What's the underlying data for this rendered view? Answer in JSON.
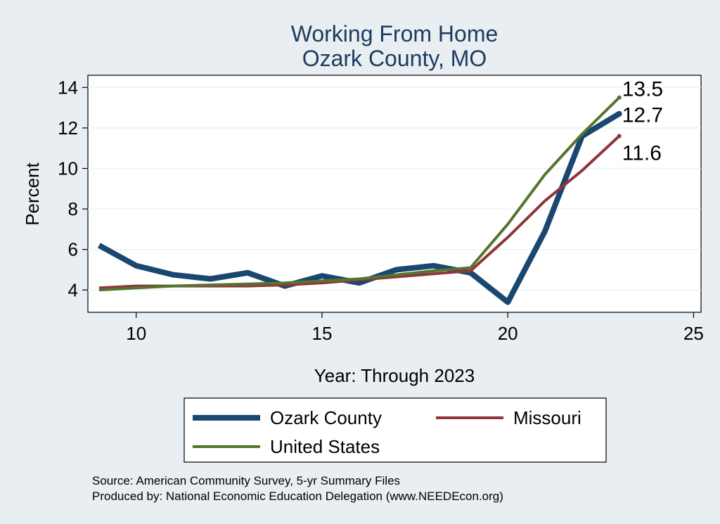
{
  "chart_data": {
    "type": "line",
    "title": "Working From Home",
    "subtitle": "Ozark County, MO",
    "xlabel": "Year: Through 2023",
    "ylabel": "Percent",
    "xlim": [
      8.7,
      25.2
    ],
    "ylim": [
      2.9,
      14.6
    ],
    "xticks": [
      10,
      15,
      20,
      25
    ],
    "yticks": [
      4,
      6,
      8,
      10,
      12,
      14
    ],
    "grid": true,
    "legend_position": "bottom",
    "x": [
      9,
      10,
      11,
      12,
      13,
      14,
      15,
      16,
      17,
      18,
      19,
      20,
      21,
      22,
      23
    ],
    "series": [
      {
        "name": "Ozark County",
        "color": "#1a476f",
        "values": [
          6.2,
          5.2,
          4.75,
          4.55,
          4.85,
          4.2,
          4.7,
          4.35,
          5.0,
          5.2,
          4.85,
          3.4,
          6.9,
          11.6,
          12.7
        ],
        "end_label": "12.7"
      },
      {
        "name": "Missouri",
        "color": "#90353b",
        "values": [
          4.1,
          4.2,
          4.2,
          4.2,
          4.2,
          4.25,
          4.35,
          4.5,
          4.65,
          4.8,
          4.95,
          6.6,
          8.4,
          9.9,
          11.6
        ],
        "end_label": "11.6"
      },
      {
        "name": "United States",
        "color": "#55752f",
        "values": [
          4.0,
          4.1,
          4.2,
          4.25,
          4.3,
          4.35,
          4.45,
          4.55,
          4.75,
          4.95,
          5.1,
          7.25,
          9.7,
          11.7,
          13.5
        ],
        "end_label": "13.5"
      }
    ],
    "source_lines": [
      "Source: American Community Survey, 5-yr Summary Files",
      "Produced by: National Economic Education Delegation (www.NEEDEcon.org)"
    ]
  }
}
